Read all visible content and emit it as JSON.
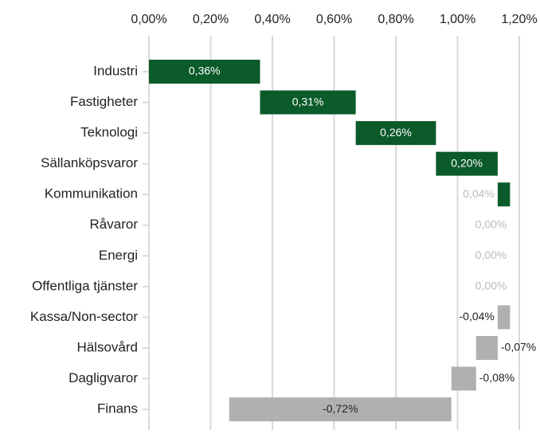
{
  "chart_data": {
    "type": "waterfall",
    "orientation": "horizontal",
    "categories": [
      "Industri",
      "Fastigheter",
      "Teknologi",
      "Sällanköpsvaror",
      "Kommunikation",
      "Råvaror",
      "Energi",
      "Offentliga tjänster",
      "Kassa/Non-sector",
      "Hälsovård",
      "Dagligvaror",
      "Finans"
    ],
    "values": [
      0.36,
      0.31,
      0.26,
      0.2,
      0.04,
      0,
      0,
      0,
      -0.04,
      -0.07,
      -0.08,
      -0.72
    ],
    "value_labels": [
      "0,36%",
      "0,31%",
      "0,26%",
      "0,20%",
      "0,04%",
      "0,00%",
      "0,00%",
      "0,00%",
      "-0,04%",
      "-0,07%",
      "-0,08%",
      "-0,72%"
    ],
    "increase_color": "#0b5a2a",
    "decrease_color": "#b0b0b0",
    "xlim": [
      0,
      1.2
    ],
    "xticks": [
      {
        "value": 0,
        "label": "0,00%"
      },
      {
        "value": 0.2,
        "label": "0,20%"
      },
      {
        "value": 0.4,
        "label": "0,40%"
      },
      {
        "value": 0.6,
        "label": "0,60%"
      },
      {
        "value": 0.8,
        "label": "0,80%"
      },
      {
        "value": 1.0,
        "label": "1,00%"
      },
      {
        "value": 1.2,
        "label": "1,20%"
      }
    ],
    "grid": true
  }
}
